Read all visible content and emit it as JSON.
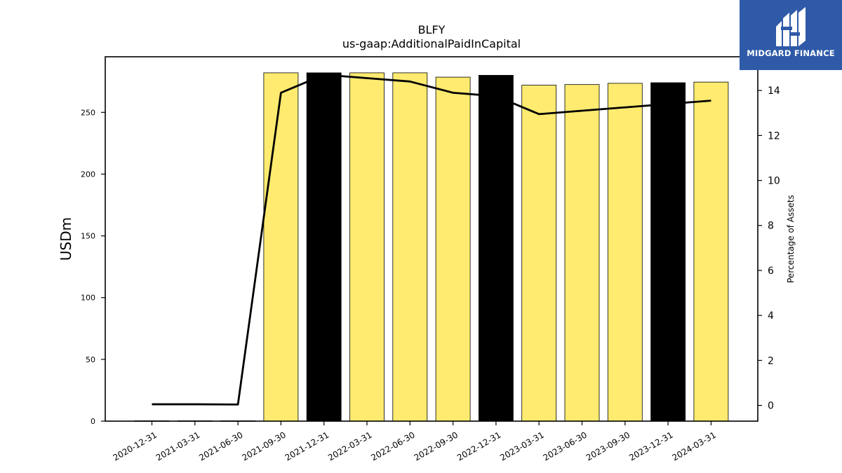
{
  "logo": {
    "brand": "MIDGARD FINANCE",
    "icon": "mf-monogram-icon"
  },
  "chart_data": {
    "type": "bar",
    "title": "BLFY",
    "subtitle": "us-gaap:AdditionalPaidInCapital",
    "ylabel": "USDm",
    "y2label": "Percentage of Assets",
    "categories": [
      "2020-12-31",
      "2021-03-31",
      "2021-06-30",
      "2021-09-30",
      "2021-12-31",
      "2022-03-31",
      "2022-06-30",
      "2022-09-30",
      "2022-12-31",
      "2023-03-31",
      "2023-06-30",
      "2023-09-30",
      "2023-12-31",
      "2024-03-31"
    ],
    "series": [
      {
        "type": "bar",
        "axis": "left",
        "values": [
          0.3,
          0.3,
          0.3,
          282,
          282,
          282,
          282,
          278.5,
          280,
          272,
          272.5,
          273.5,
          274,
          274.5
        ],
        "colors": [
          "#ffeb70",
          "#ffeb70",
          "#ffeb70",
          "#ffeb70",
          "#000000",
          "#ffeb70",
          "#ffeb70",
          "#ffeb70",
          "#000000",
          "#ffeb70",
          "#ffeb70",
          "#ffeb70",
          "#000000",
          "#ffeb70"
        ]
      },
      {
        "type": "line",
        "axis": "right",
        "values": [
          0.05,
          0.05,
          0.04,
          13.9,
          14.7,
          14.55,
          14.4,
          13.9,
          13.75,
          12.95,
          13.1,
          13.25,
          13.4,
          13.55
        ]
      }
    ],
    "ylim": [
      0,
      295
    ],
    "y2lim": [
      -0.7,
      15.5
    ],
    "yticks": [
      0,
      50,
      100,
      150,
      200,
      250
    ],
    "y2ticks": [
      0,
      2,
      4,
      6,
      8,
      10,
      12,
      14
    ],
    "colors": {
      "bar_default": "#ffeb70",
      "bar_highlight": "#000000",
      "line": "#000000"
    },
    "grid": false,
    "legend": "none"
  }
}
